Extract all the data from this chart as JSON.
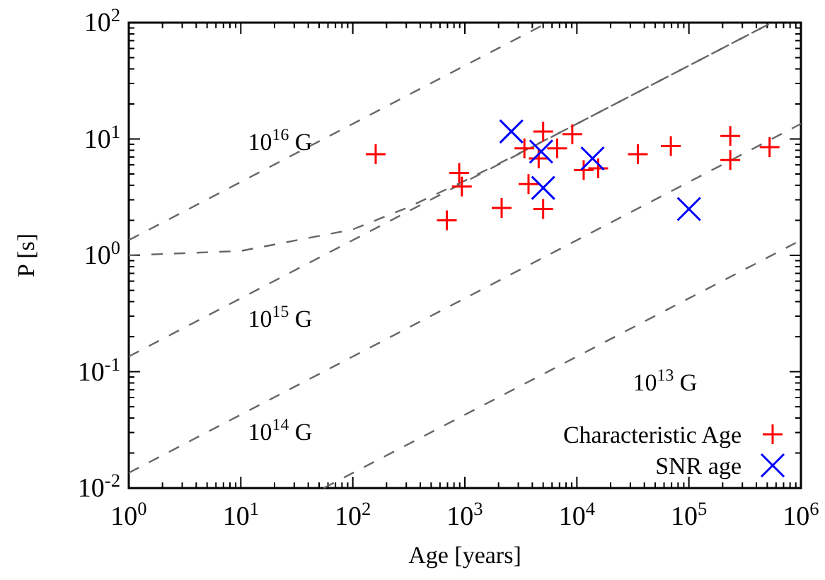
{
  "chart_data": {
    "type": "scatter",
    "xlabel": "Age [years]",
    "ylabel": "P [s]",
    "log": "xy",
    "grid": false,
    "legend": "bottom right",
    "line_style": "dashed",
    "xlim": [
      1,
      1000000
    ],
    "ylim": [
      0.01,
      100
    ],
    "xticks": [
      {
        "value": 1,
        "label": "10$^{0}$"
      },
      {
        "value": 10,
        "label": "10$^{1}$"
      },
      {
        "value": 100,
        "label": "10$^{2}$"
      },
      {
        "value": 1000,
        "label": "10$^{3}$"
      },
      {
        "value": 10000,
        "label": "10$^{4}$"
      },
      {
        "value": 100000,
        "label": "10$^{5}$"
      },
      {
        "value": 1000000,
        "label": "10$^{6}$"
      }
    ],
    "yticks": [
      {
        "value": 0.01,
        "label": "10$^{-2}$"
      },
      {
        "value": 0.1,
        "label": "10$^{-1}$"
      },
      {
        "value": 1,
        "label": "10$^{0}$"
      },
      {
        "value": 10,
        "label": "10$^{1}$"
      },
      {
        "value": 100,
        "label": "10$^{2}$"
      }
    ],
    "series": [
      {
        "type": "line",
        "color": "#666666",
        "x": [
          1,
          5487
        ],
        "values": [
          1.35,
          100
        ]
      },
      {
        "type": "line",
        "color": "#666666",
        "x": [
          1,
          548700
        ],
        "values": [
          0.135,
          100
        ]
      },
      {
        "type": "line",
        "color": "#666666",
        "x": [
          1,
          1000000
        ],
        "values": [
          0.0135,
          13.5
        ]
      },
      {
        "type": "line",
        "color": "#666666",
        "x": [
          55,
          1000000
        ],
        "values": [
          0.01,
          1.35
        ]
      },
      {
        "type": "line",
        "color": "#666666",
        "x": [
          1,
          10,
          100,
          300,
          1000,
          3000,
          10000,
          30000,
          100000,
          300000,
          540000
        ],
        "values": [
          1,
          1.09,
          1.67,
          2.55,
          4.38,
          7.46,
          13.5,
          23.4,
          42.7,
          73.9,
          99.2
        ]
      },
      {
        "name": "Characteristic Age",
        "color": "#ff0000",
        "marker": "cross",
        "x": [
          160,
          890,
          940,
          690,
          2130,
          5000,
          3400,
          4560,
          6660,
          3700,
          5000,
          9100,
          11500,
          15500,
          35000,
          69000,
          234000,
          234000,
          525000
        ],
        "values": [
          7.4,
          5.1,
          3.9,
          2.0,
          2.55,
          11.6,
          8.3,
          6.8,
          8.3,
          4.1,
          2.5,
          11.0,
          5.4,
          5.6,
          7.4,
          8.7,
          10.6,
          6.6,
          8.5
        ]
      },
      {
        "name": "SNR age",
        "color": "#0000ff",
        "marker": "x",
        "x": [
          2600,
          4800,
          5000,
          13800,
          100000
        ],
        "values": [
          11.6,
          7.8,
          3.8,
          6.8,
          2.5
        ]
      }
    ],
    "annotations": [
      "10$^{16}$ G",
      "10$^{15}$ G",
      "10$^{14}$ G",
      "10$^{13}$ G"
    ]
  }
}
